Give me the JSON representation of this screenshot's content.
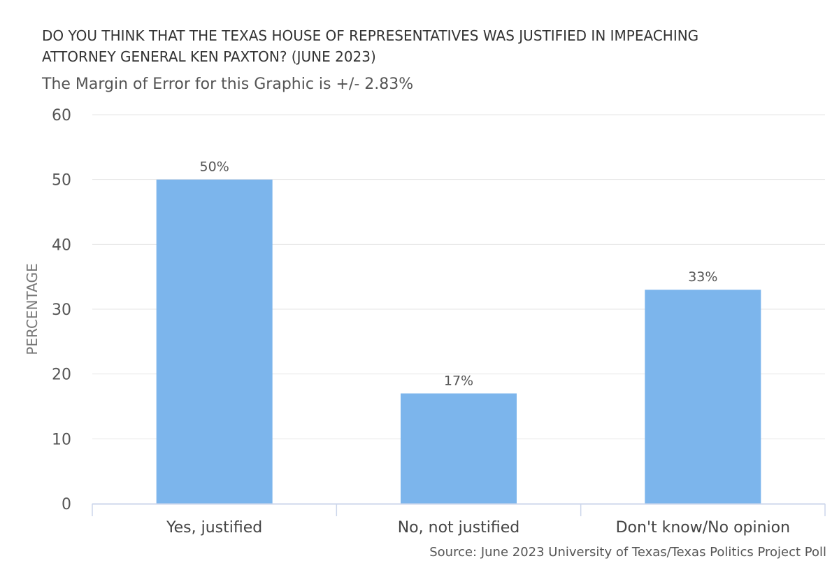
{
  "chart_data": {
    "type": "bar",
    "title": "DO YOU THINK THAT THE TEXAS HOUSE OF REPRESENTATIVES WAS JUSTIFIED IN IMPEACHING ATTORNEY GENERAL KEN PAXTON? (JUNE 2023)",
    "subtitle": "The Margin of Error for this Graphic is +/- 2.83%",
    "xlabel": "",
    "ylabel": "PERCENTAGE",
    "categories": [
      "Yes, justified",
      "No, not justified",
      "Don't know/No opinion"
    ],
    "values": [
      50,
      17,
      33
    ],
    "data_labels": [
      "50%",
      "17%",
      "33%"
    ],
    "ylim": [
      0,
      60
    ],
    "yticks": [
      0,
      10,
      20,
      30,
      40,
      50,
      60
    ],
    "grid": true,
    "legend": "none",
    "bar_color": "#7cb5ec",
    "source": "Source: June 2023 University of Texas/Texas Politics Project Poll"
  }
}
